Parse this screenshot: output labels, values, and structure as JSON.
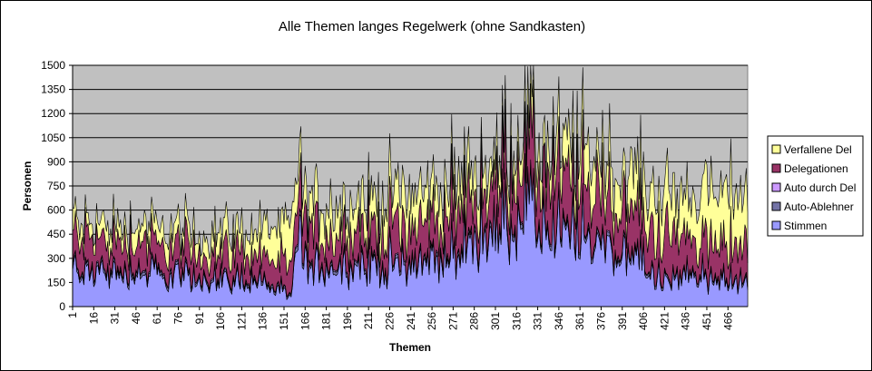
{
  "chart_data": {
    "type": "area",
    "stacked": true,
    "title": "Alle Themen langes Regelwerk (ohne Sandkasten)",
    "xlabel": "Themen",
    "ylabel": "Personen",
    "ylim": [
      0,
      1500
    ],
    "yticks": [
      "0",
      "150",
      "300",
      "450",
      "600",
      "750",
      "900",
      "1050",
      "1200",
      "1350",
      "1500"
    ],
    "xticks": [
      "1",
      "16",
      "31",
      "46",
      "61",
      "76",
      "91",
      "106",
      "121",
      "136",
      "151",
      "166",
      "181",
      "196",
      "211",
      "226",
      "241",
      "256",
      "271",
      "286",
      "301",
      "316",
      "331",
      "346",
      "361",
      "376",
      "391",
      "406",
      "421",
      "436",
      "451",
      "466"
    ],
    "xrange": [
      1,
      480
    ],
    "grid": true,
    "plot_background": "#C0C0C0",
    "legend_position": "right",
    "anchors": [
      {
        "x": 1,
        "stimmen": 230,
        "auto_ablehner": 20,
        "auto_durch_del": 8,
        "delegationen": 180,
        "verfallene_del": 100
      },
      {
        "x": 10,
        "stimmen": 210,
        "auto_ablehner": 20,
        "auto_durch_del": 8,
        "delegationen": 190,
        "verfallene_del": 100
      },
      {
        "x": 30,
        "stimmen": 200,
        "auto_ablehner": 20,
        "auto_durch_del": 8,
        "delegationen": 180,
        "verfallene_del": 95
      },
      {
        "x": 46,
        "stimmen": 215,
        "auto_ablehner": 20,
        "auto_durch_del": 8,
        "delegationen": 180,
        "verfallene_del": 100
      },
      {
        "x": 70,
        "stimmen": 180,
        "auto_ablehner": 18,
        "auto_durch_del": 8,
        "delegationen": 160,
        "verfallene_del": 110
      },
      {
        "x": 100,
        "stimmen": 160,
        "auto_ablehner": 15,
        "auto_durch_del": 8,
        "delegationen": 150,
        "verfallene_del": 120
      },
      {
        "x": 130,
        "stimmen": 170,
        "auto_ablehner": 15,
        "auto_durch_del": 8,
        "delegationen": 150,
        "verfallene_del": 140
      },
      {
        "x": 150,
        "stimmen": 90,
        "auto_ablehner": 15,
        "auto_durch_del": 5,
        "delegationen": 150,
        "verfallene_del": 230
      },
      {
        "x": 156,
        "stimmen": 40,
        "auto_ablehner": 10,
        "auto_durch_del": 5,
        "delegationen": 150,
        "verfallene_del": 270
      },
      {
        "x": 160,
        "stimmen": 500,
        "auto_ablehner": 30,
        "auto_durch_del": 10,
        "delegationen": 280,
        "verfallene_del": 220
      },
      {
        "x": 165,
        "stimmen": 250,
        "auto_ablehner": 20,
        "auto_durch_del": 8,
        "delegationen": 190,
        "verfallene_del": 170
      },
      {
        "x": 200,
        "stimmen": 240,
        "auto_ablehner": 20,
        "auto_durch_del": 8,
        "delegationen": 200,
        "verfallene_del": 200
      },
      {
        "x": 240,
        "stimmen": 270,
        "auto_ablehner": 20,
        "auto_durch_del": 8,
        "delegationen": 220,
        "verfallene_del": 200
      },
      {
        "x": 275,
        "stimmen": 310,
        "auto_ablehner": 25,
        "auto_durch_del": 10,
        "delegationen": 250,
        "verfallene_del": 190
      },
      {
        "x": 283,
        "stimmen": 420,
        "auto_ablehner": 25,
        "auto_durch_del": 10,
        "delegationen": 230,
        "verfallene_del": 180
      },
      {
        "x": 300,
        "stimmen": 450,
        "auto_ablehner": 25,
        "auto_durch_del": 10,
        "delegationen": 240,
        "verfallene_del": 150
      },
      {
        "x": 316,
        "stimmen": 560,
        "auto_ablehner": 30,
        "auto_durch_del": 10,
        "delegationen": 320,
        "verfallene_del": 170
      },
      {
        "x": 340,
        "stimmen": 470,
        "auto_ablehner": 25,
        "auto_durch_del": 10,
        "delegationen": 280,
        "verfallene_del": 200
      },
      {
        "x": 370,
        "stimmen": 420,
        "auto_ablehner": 25,
        "auto_durch_del": 10,
        "delegationen": 290,
        "verfallene_del": 230
      },
      {
        "x": 395,
        "stimmen": 340,
        "auto_ablehner": 20,
        "auto_durch_del": 8,
        "delegationen": 260,
        "verfallene_del": 230
      },
      {
        "x": 420,
        "stimmen": 150,
        "auto_ablehner": 15,
        "auto_durch_del": 5,
        "delegationen": 260,
        "verfallene_del": 260
      },
      {
        "x": 440,
        "stimmen": 190,
        "auto_ablehner": 15,
        "auto_durch_del": 5,
        "delegationen": 230,
        "verfallene_del": 270
      },
      {
        "x": 460,
        "stimmen": 160,
        "auto_ablehner": 15,
        "auto_durch_del": 5,
        "delegationen": 210,
        "verfallene_del": 330
      },
      {
        "x": 480,
        "stimmen": 150,
        "auto_ablehner": 15,
        "auto_durch_del": 5,
        "delegationen": 220,
        "verfallene_del": 340
      }
    ],
    "series": [
      {
        "key": "stimmen",
        "name": "Stimmen",
        "color": "#9999FF"
      },
      {
        "key": "auto_ablehner",
        "name": "Auto-Ablehner",
        "color": "#7373A6"
      },
      {
        "key": "auto_durch_del",
        "name": "Auto durch Del",
        "color": "#CC99FF"
      },
      {
        "key": "delegationen",
        "name": "Delegationen",
        "color": "#993366"
      },
      {
        "key": "verfallene_del",
        "name": "Verfallene Del",
        "color": "#FFFF99"
      }
    ],
    "legend_order": [
      "verfallene_del",
      "delegationen",
      "auto_durch_del",
      "auto_ablehner",
      "stimmen"
    ]
  }
}
